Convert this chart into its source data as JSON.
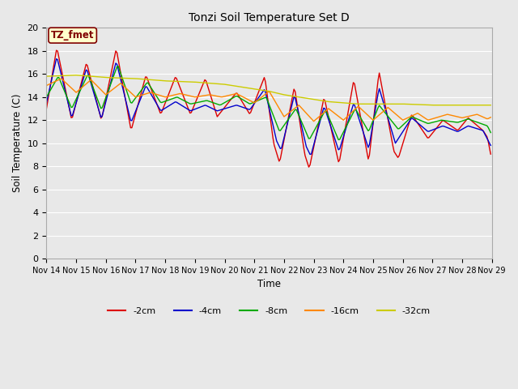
{
  "title": "Tonzi Soil Temperature Set D",
  "xlabel": "Time",
  "ylabel": "Soil Temperature (C)",
  "ylim": [
    0,
    20
  ],
  "yticks": [
    0,
    2,
    4,
    6,
    8,
    10,
    12,
    14,
    16,
    18,
    20
  ],
  "annotation_label": "TZ_fmet",
  "annotation_box_color": "#ffffcc",
  "annotation_border_color": "#800000",
  "background_color": "#e8e8e8",
  "series_colors": {
    "-2cm": "#dd0000",
    "-4cm": "#0000cc",
    "-8cm": "#00aa00",
    "-16cm": "#ff8800",
    "-32cm": "#cccc00"
  },
  "x_labels": [
    "Nov 14",
    "Nov 15",
    "Nov 16",
    "Nov 17",
    "Nov 18",
    "Nov 19",
    "Nov 20",
    "Nov 21",
    "Nov 22",
    "Nov 23",
    "Nov 24",
    "Nov 25",
    "Nov 26",
    "Nov 27",
    "Nov 28",
    "Nov 29"
  ],
  "legend_entries": [
    "-2cm",
    "-4cm",
    "-8cm",
    "-16cm",
    "-32cm"
  ]
}
